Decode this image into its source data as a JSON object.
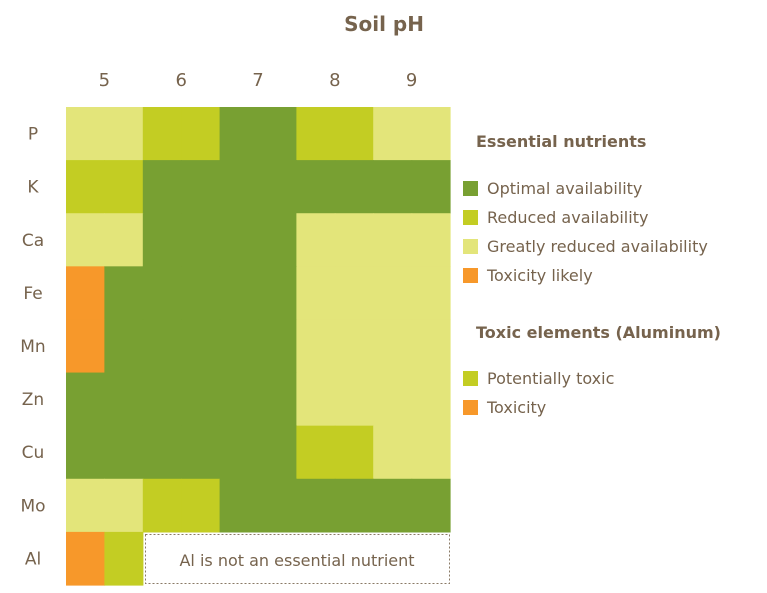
{
  "chart_data": {
    "type": "heatmap",
    "title": "Soil pH",
    "x_ticks": [
      "5",
      "6",
      "7",
      "8",
      "9"
    ],
    "rows": [
      "P",
      "K",
      "Ca",
      "Fe",
      "Mn",
      "Zn",
      "Cu",
      "Mo",
      "Al"
    ],
    "levels": {
      "optimal": "#78a032",
      "reduced": "#c3cd23",
      "greatly_reduced": "#e3e57a",
      "toxic": "#f7982a"
    },
    "cells_note_resolution": "each row lists half-pH-step levels from pH 5 (left half) to pH 9 (right half)",
    "cells": [
      [
        "greatly_reduced",
        "greatly_reduced",
        "reduced",
        "reduced",
        "optimal",
        "optimal",
        "reduced",
        "reduced",
        "greatly_reduced",
        "greatly_reduced"
      ],
      [
        "reduced",
        "reduced",
        "optimal",
        "optimal",
        "optimal",
        "optimal",
        "optimal",
        "optimal",
        "optimal",
        "optimal"
      ],
      [
        "greatly_reduced",
        "greatly_reduced",
        "optimal",
        "optimal",
        "optimal",
        "optimal",
        "greatly_reduced",
        "greatly_reduced",
        "greatly_reduced",
        "greatly_reduced"
      ],
      [
        "toxic",
        "optimal",
        "optimal",
        "optimal",
        "optimal",
        "optimal",
        "greatly_reduced",
        "greatly_reduced",
        "greatly_reduced",
        "greatly_reduced"
      ],
      [
        "toxic",
        "optimal",
        "optimal",
        "optimal",
        "optimal",
        "optimal",
        "greatly_reduced",
        "greatly_reduced",
        "greatly_reduced",
        "greatly_reduced"
      ],
      [
        "optimal",
        "optimal",
        "optimal",
        "optimal",
        "optimal",
        "optimal",
        "greatly_reduced",
        "greatly_reduced",
        "greatly_reduced",
        "greatly_reduced"
      ],
      [
        "optimal",
        "optimal",
        "optimal",
        "optimal",
        "optimal",
        "optimal",
        "reduced",
        "reduced",
        "greatly_reduced",
        "greatly_reduced"
      ],
      [
        "greatly_reduced",
        "greatly_reduced",
        "reduced",
        "reduced",
        "optimal",
        "optimal",
        "optimal",
        "optimal",
        "optimal",
        "optimal"
      ],
      [
        "toxic",
        "reduced",
        null,
        null,
        null,
        null,
        null,
        null,
        null,
        null
      ]
    ],
    "annotation": "Al is not an essential nutrient",
    "legend": {
      "placement": "right",
      "groups": [
        {
          "title": "Essential nutrients",
          "items": [
            {
              "label": "Optimal availability",
              "level": "optimal"
            },
            {
              "label": "Reduced availability",
              "level": "reduced"
            },
            {
              "label": "Greatly reduced availability",
              "level": "greatly_reduced"
            },
            {
              "label": "Toxicity likely",
              "level": "toxic"
            }
          ]
        },
        {
          "title": "Toxic elements (Aluminum)",
          "items": [
            {
              "label": "Potentially toxic",
              "level": "reduced"
            },
            {
              "label": "Toxicity",
              "level": "toxic"
            }
          ]
        }
      ]
    }
  }
}
